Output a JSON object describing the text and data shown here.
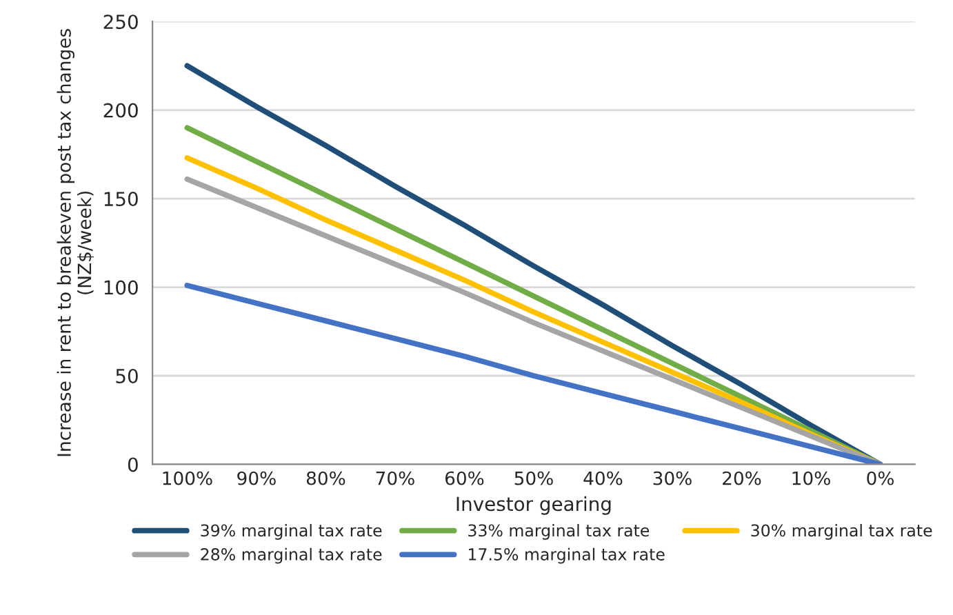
{
  "chart_data": {
    "type": "line",
    "xlabel": "Investor gearing",
    "ylabel": "Increase in rent to breakeven post tax changes\n(NZ$/week)",
    "categories": [
      "100%",
      "90%",
      "80%",
      "70%",
      "60%",
      "50%",
      "40%",
      "30%",
      "20%",
      "10%",
      "0%"
    ],
    "series": [
      {
        "name": "39% marginal tax rate",
        "color": "#1f4e79",
        "values": [
          225,
          202,
          180,
          157,
          135,
          112,
          90,
          67,
          45,
          22,
          0
        ]
      },
      {
        "name": "33% marginal tax rate",
        "color": "#70ad47",
        "values": [
          190,
          171,
          152,
          133,
          114,
          95,
          76,
          57,
          38,
          19,
          0
        ]
      },
      {
        "name": "30% marginal tax rate",
        "color": "#ffc000",
        "values": [
          173,
          156,
          138,
          121,
          104,
          86,
          69,
          52,
          35,
          17,
          0
        ]
      },
      {
        "name": "28% marginal tax rate",
        "color": "#a5a5a5",
        "values": [
          161,
          145,
          129,
          113,
          97,
          80,
          64,
          48,
          32,
          16,
          0
        ]
      },
      {
        "name": "17.5% marginal tax rate",
        "color": "#4472c4",
        "values": [
          101,
          91,
          81,
          71,
          61,
          50,
          40,
          30,
          20,
          10,
          0
        ]
      }
    ],
    "ylim": [
      0,
      250
    ],
    "yticks": [
      0,
      50,
      100,
      150,
      200,
      250
    ],
    "grid": "y",
    "legend": "bottom",
    "marker": "none",
    "line_style": "solid"
  }
}
